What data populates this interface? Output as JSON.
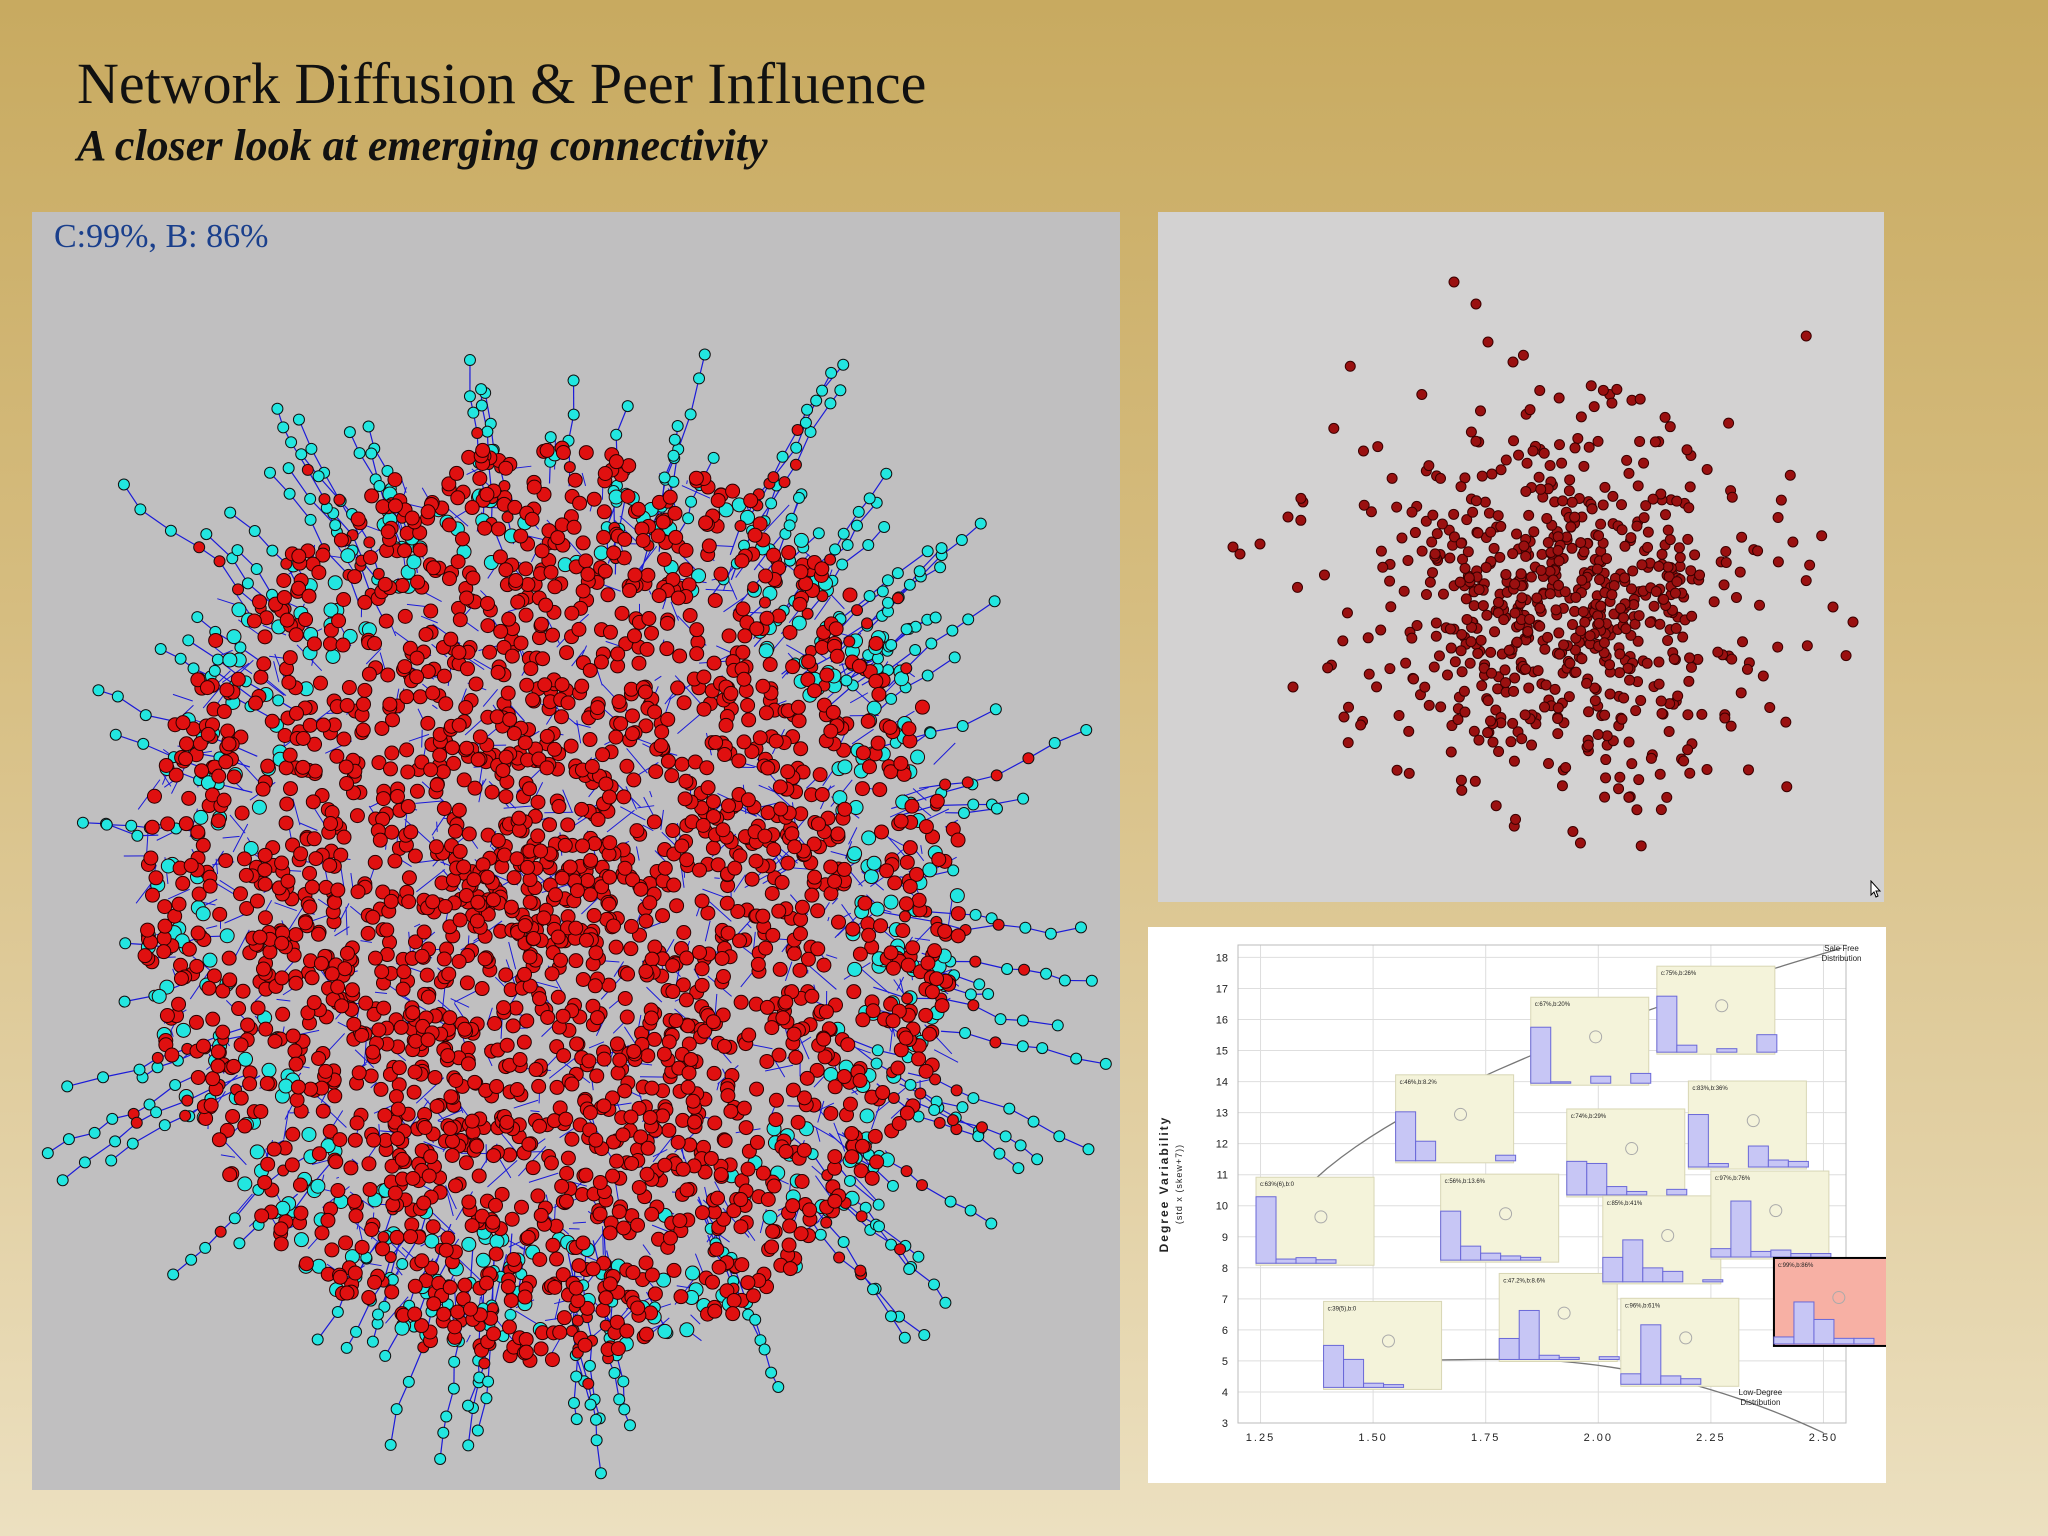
{
  "slide": {
    "title": "Network Diffusion & Peer Influence",
    "subtitle": "A closer look at emerging connectivity"
  },
  "network_panel": {
    "label": "C:99%, B: 86%",
    "colors": {
      "adopted": "#e01010",
      "not_adopted": "#22e6e0",
      "edges": "#1a1ad8",
      "background": "#c0bfc0"
    }
  },
  "scatter_panel": {
    "colors": {
      "node": "#9a1010",
      "background": "#d3d2d2"
    },
    "cursor_icon": "arrow-cursor-icon"
  },
  "chart_data": {
    "type": "scatter",
    "title": "",
    "xlabel": "",
    "ylabel": "Degree Variability",
    "ylabel_sub": "(std x (skew+7))",
    "xlim": [
      1.2,
      2.55
    ],
    "ylim": [
      3,
      18.4
    ],
    "x_ticks": [
      "1.25",
      "1.50",
      "1.75",
      "2.00",
      "2.25",
      "2.50"
    ],
    "y_ticks": [
      "3",
      "4",
      "5",
      "6",
      "7",
      "8",
      "9",
      "10",
      "11",
      "12",
      "13",
      "14",
      "15",
      "16",
      "17",
      "18"
    ],
    "curve_labels": [
      {
        "text": "Sale Free Distribution",
        "x": 2.54,
        "y": 18.2
      },
      {
        "text": "Low-Degree Distribution",
        "x": 2.36,
        "y": 3.9
      }
    ],
    "highlight_color": "#f7b0a4",
    "insets": [
      {
        "label": "c:63%(6),b:0",
        "x": 1.24,
        "y": 9.5,
        "bars": [
          0.95,
          0.06,
          0.08,
          0.05
        ],
        "highlight": false
      },
      {
        "label": "c:39(5),b:0",
        "x": 1.39,
        "y": 5.5,
        "bars": [
          0.6,
          0.4,
          0.06,
          0.04
        ],
        "highlight": false
      },
      {
        "label": "c:46%,b:8.2%",
        "x": 1.55,
        "y": 12.8,
        "bars": [
          0.7,
          0.28,
          0.0,
          0.0,
          0.0,
          0.08
        ],
        "highlight": false
      },
      {
        "label": "c:56%,b:13.6%",
        "x": 1.65,
        "y": 9.6,
        "bars": [
          0.7,
          0.2,
          0.1,
          0.06,
          0.04
        ],
        "highlight": false
      },
      {
        "label": "c:47.2%,b:8.6%",
        "x": 1.78,
        "y": 6.4,
        "bars": [
          0.3,
          0.7,
          0.06,
          0.03,
          0.0,
          0.04
        ],
        "highlight": false
      },
      {
        "label": "c:67%,b:20%",
        "x": 1.85,
        "y": 15.3,
        "bars": [
          0.8,
          0.02,
          0.0,
          0.1,
          0.0,
          0.14
        ],
        "highlight": false
      },
      {
        "label": "c:74%,b:29%",
        "x": 1.93,
        "y": 11.7,
        "bars": [
          0.48,
          0.45,
          0.12,
          0.05,
          0.0,
          0.08
        ],
        "highlight": false
      },
      {
        "label": "c:85%,b:41%",
        "x": 2.01,
        "y": 8.9,
        "bars": [
          0.35,
          0.6,
          0.2,
          0.15,
          0.0,
          0.03
        ],
        "highlight": false
      },
      {
        "label": "c:96%,b:61%",
        "x": 2.05,
        "y": 5.6,
        "bars": [
          0.15,
          0.85,
          0.12,
          0.08
        ],
        "highlight": false
      },
      {
        "label": "c:75%,b:26%",
        "x": 2.13,
        "y": 16.3,
        "bars": [
          0.8,
          0.1,
          0.0,
          0.05,
          0.0,
          0.25
        ],
        "highlight": false
      },
      {
        "label": "c:83%,b:36%",
        "x": 2.2,
        "y": 12.6,
        "bars": [
          0.75,
          0.05,
          0.0,
          0.3,
          0.1,
          0.08
        ],
        "highlight": false
      },
      {
        "label": "c:97%,b:76%",
        "x": 2.25,
        "y": 9.7,
        "bars": [
          0.12,
          0.8,
          0.08,
          0.1,
          0.05,
          0.05
        ],
        "highlight": false
      },
      {
        "label": "c:99%,b:86%",
        "x": 2.39,
        "y": 6.9,
        "bars": [
          0.1,
          0.6,
          0.35,
          0.08,
          0.08
        ],
        "highlight": true
      }
    ]
  }
}
